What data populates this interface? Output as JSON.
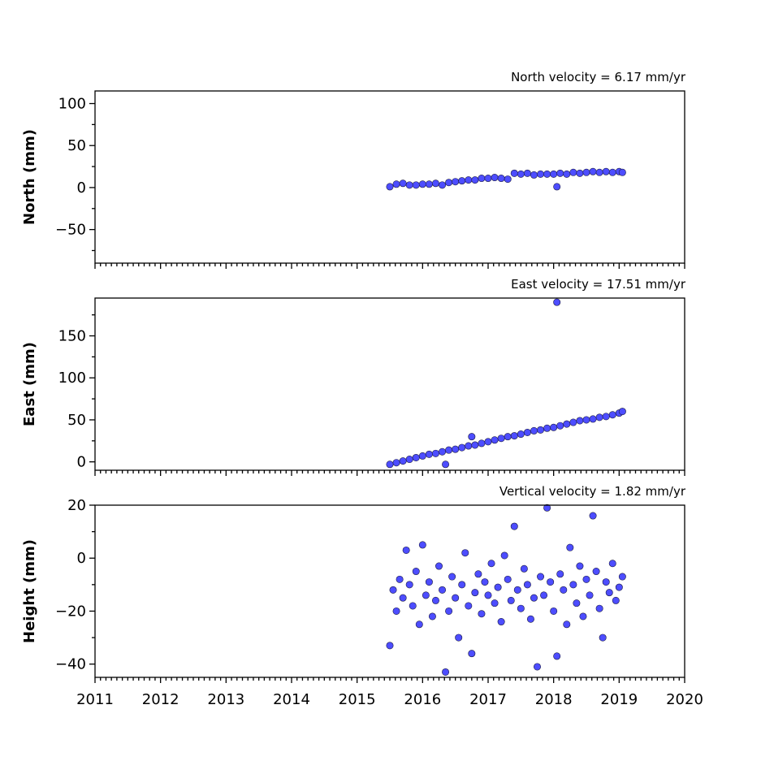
{
  "chart_data": [
    {
      "type": "scatter",
      "title": "North velocity = 6.17 mm/yr",
      "xlabel": "",
      "ylabel": "North (mm)",
      "xlim": [
        2011,
        2020
      ],
      "ylim": [
        -90,
        115
      ],
      "y_ticks": [
        -50,
        0,
        50,
        100
      ],
      "y_tick_labels": [
        "−50",
        "0",
        "50",
        "100"
      ],
      "series": [
        {
          "x": [
            2015.5,
            2015.6,
            2015.7,
            2015.8,
            2015.9,
            2016.0,
            2016.1,
            2016.2,
            2016.3,
            2016.4,
            2016.5,
            2016.6,
            2016.7,
            2016.8,
            2016.9,
            2017.0,
            2017.1,
            2017.2,
            2017.3,
            2017.4,
            2017.5,
            2017.6,
            2017.7,
            2017.8,
            2017.9,
            2018.0,
            2018.05,
            2018.1,
            2018.2,
            2018.3,
            2018.4,
            2018.5,
            2018.6,
            2018.7,
            2018.8,
            2018.9,
            2019.0,
            2019.05
          ],
          "y": [
            1,
            4,
            5,
            3,
            3,
            4,
            4,
            5,
            3,
            6,
            7,
            8,
            9,
            9,
            11,
            11,
            12,
            11,
            10,
            17,
            16,
            17,
            15,
            16,
            16,
            16,
            1,
            17,
            16,
            18,
            17,
            18,
            19,
            18,
            19,
            18,
            19,
            18
          ]
        }
      ]
    },
    {
      "type": "scatter",
      "title": "East velocity = 17.51 mm/yr",
      "xlabel": "",
      "ylabel": "East (mm)",
      "xlim": [
        2011,
        2020
      ],
      "ylim": [
        -10,
        195
      ],
      "y_ticks": [
        0,
        50,
        100,
        150
      ],
      "y_tick_labels": [
        "0",
        "50",
        "100",
        "150"
      ],
      "series": [
        {
          "x": [
            2015.5,
            2015.6,
            2015.7,
            2015.8,
            2015.9,
            2016.0,
            2016.1,
            2016.2,
            2016.3,
            2016.35,
            2016.4,
            2016.5,
            2016.6,
            2016.7,
            2016.75,
            2016.8,
            2016.9,
            2017.0,
            2017.1,
            2017.2,
            2017.3,
            2017.4,
            2017.5,
            2017.6,
            2017.7,
            2017.8,
            2017.9,
            2018.0,
            2018.05,
            2018.1,
            2018.2,
            2018.3,
            2018.4,
            2018.5,
            2018.6,
            2018.7,
            2018.8,
            2018.9,
            2019.0,
            2019.05
          ],
          "y": [
            -3,
            -1,
            1,
            3,
            5,
            7,
            9,
            10,
            12,
            -3,
            14,
            15,
            17,
            19,
            30,
            20,
            22,
            24,
            26,
            28,
            30,
            31,
            33,
            35,
            37,
            38,
            40,
            41,
            190,
            43,
            45,
            47,
            49,
            50,
            51,
            53,
            54,
            56,
            58,
            60
          ]
        }
      ]
    },
    {
      "type": "scatter",
      "title": "Vertical velocity = 1.82 mm/yr",
      "xlabel": "",
      "ylabel": "Height (mm)",
      "xlim": [
        2011,
        2020
      ],
      "ylim": [
        -45,
        20
      ],
      "y_ticks": [
        -40,
        -20,
        0,
        20
      ],
      "y_tick_labels": [
        "−40",
        "−20",
        "0",
        "20"
      ],
      "x_ticks": [
        2011,
        2012,
        2013,
        2014,
        2015,
        2016,
        2017,
        2018,
        2019,
        2020
      ],
      "x_tick_labels": [
        "2011",
        "2012",
        "2013",
        "2014",
        "2015",
        "2016",
        "2017",
        "2018",
        "2019",
        "2020"
      ],
      "series": [
        {
          "x": [
            2015.5,
            2015.55,
            2015.6,
            2015.65,
            2015.7,
            2015.75,
            2015.8,
            2015.85,
            2015.9,
            2015.95,
            2016.0,
            2016.05,
            2016.1,
            2016.15,
            2016.2,
            2016.25,
            2016.3,
            2016.35,
            2016.4,
            2016.45,
            2016.5,
            2016.55,
            2016.6,
            2016.65,
            2016.7,
            2016.75,
            2016.8,
            2016.85,
            2016.9,
            2016.95,
            2017.0,
            2017.05,
            2017.1,
            2017.15,
            2017.2,
            2017.25,
            2017.3,
            2017.35,
            2017.4,
            2017.45,
            2017.5,
            2017.55,
            2017.6,
            2017.65,
            2017.7,
            2017.75,
            2017.8,
            2017.85,
            2017.9,
            2017.95,
            2018.0,
            2018.05,
            2018.1,
            2018.15,
            2018.2,
            2018.25,
            2018.3,
            2018.35,
            2018.4,
            2018.45,
            2018.5,
            2018.55,
            2018.6,
            2018.65,
            2018.7,
            2018.75,
            2018.8,
            2018.85,
            2018.9,
            2018.95,
            2019.0,
            2019.05
          ],
          "y": [
            -33,
            -12,
            -20,
            -8,
            -15,
            3,
            -10,
            -18,
            -5,
            -25,
            5,
            -14,
            -9,
            -22,
            -16,
            -3,
            -12,
            -43,
            -20,
            -7,
            -15,
            -30,
            -10,
            2,
            -18,
            -36,
            -13,
            -6,
            -21,
            -9,
            -14,
            -2,
            -17,
            -11,
            -24,
            1,
            -8,
            -16,
            12,
            -12,
            -19,
            -4,
            -10,
            -23,
            -15,
            -41,
            -7,
            -14,
            19,
            -9,
            -20,
            -37,
            -6,
            -12,
            -25,
            4,
            -10,
            -17,
            -3,
            -22,
            -8,
            -14,
            16,
            -5,
            -19,
            -30,
            -9,
            -13,
            -2,
            -16,
            -11,
            -7
          ]
        }
      ]
    }
  ]
}
